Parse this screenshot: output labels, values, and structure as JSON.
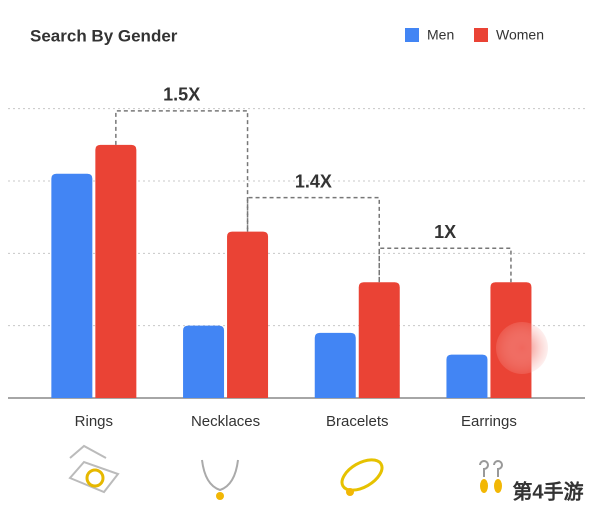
{
  "chart_data": {
    "type": "bar",
    "title": "Search By Gender",
    "categories": [
      "Rings",
      "Necklaces",
      "Bracelets",
      "Earrings"
    ],
    "series": [
      {
        "name": "Men",
        "color": "#4285f4",
        "values": [
          3.1,
          1.0,
          0.9,
          0.6
        ]
      },
      {
        "name": "Women",
        "color": "#ea4335",
        "values": [
          3.5,
          2.3,
          1.6,
          1.6
        ]
      }
    ],
    "annotations": [
      "1.5X",
      "1.4X",
      "1X"
    ],
    "ylim": [
      0,
      4.5
    ],
    "yticks": [
      0,
      1,
      2,
      3,
      4
    ],
    "grid": true
  },
  "watermark": "第4手游"
}
